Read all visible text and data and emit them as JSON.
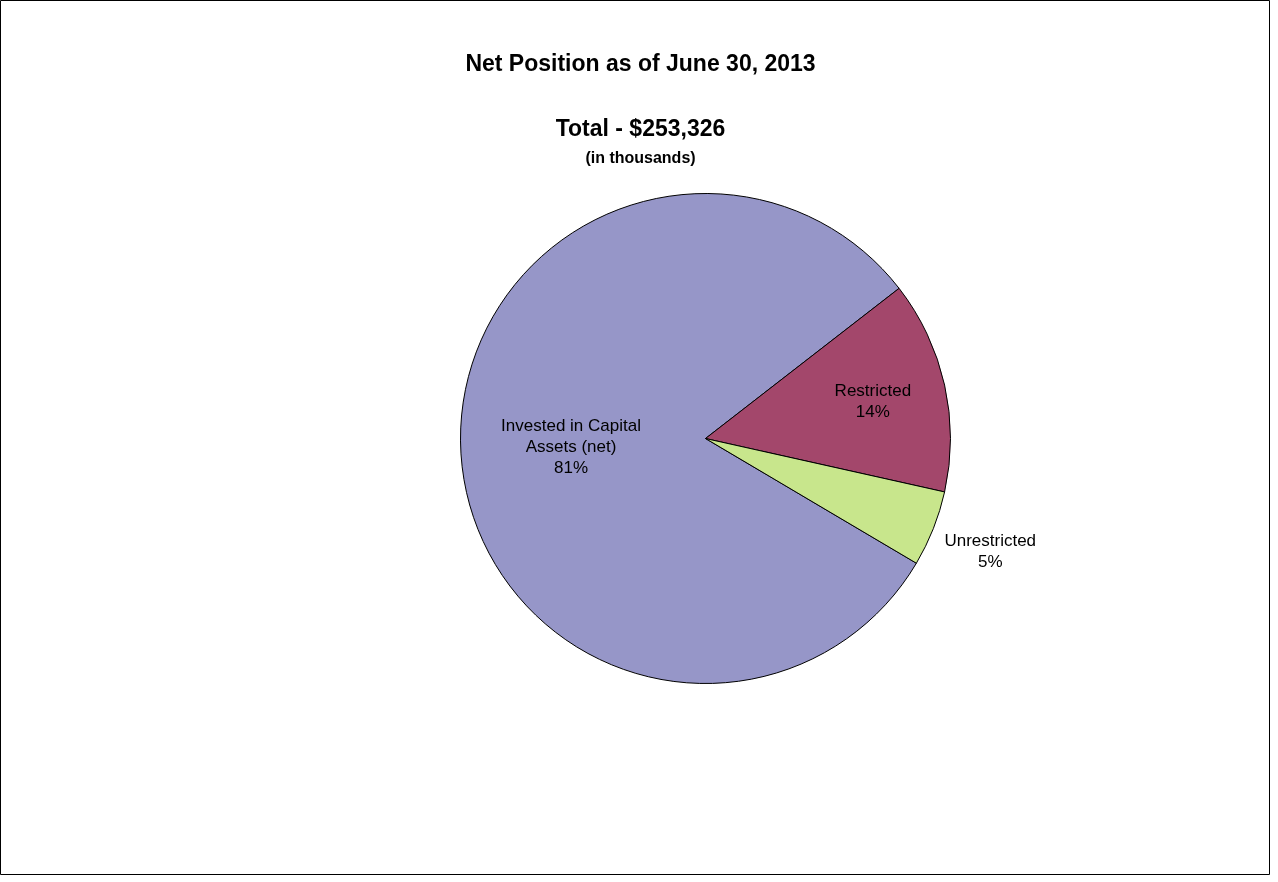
{
  "chart_data": {
    "type": "pie",
    "title": "Net Position as of June 30, 2013",
    "subtitle": "Total - $253,326",
    "annotations": [
      "(in thousands)"
    ],
    "categories": [
      "Invested in Capital Assets (net)",
      "Restricted",
      "Unrestricted"
    ],
    "values": [
      81,
      14,
      5
    ],
    "colors": [
      "#9696c8",
      "#a3476b",
      "#c8e68c"
    ],
    "value_labels": [
      "81%",
      "14%",
      "5%"
    ]
  }
}
